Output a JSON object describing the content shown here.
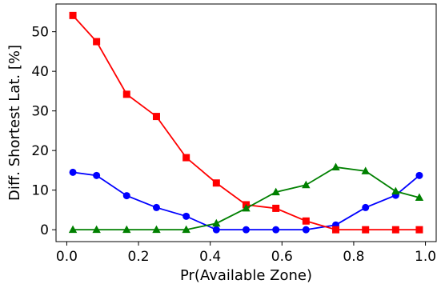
{
  "chart_data": {
    "type": "line",
    "title": "",
    "xlabel": "Pr(Available Zone)",
    "ylabel": "Diff. Shortest Lat. [%]",
    "xlim": [
      -0.03,
      1.03
    ],
    "ylim": [
      -3,
      57
    ],
    "xticks": [
      0.0,
      0.2,
      0.4,
      0.6,
      0.8,
      1.0
    ],
    "xtick_labels": [
      "0.0",
      "0.2",
      "0.4",
      "0.6",
      "0.8",
      "1.0"
    ],
    "yticks": [
      0,
      10,
      20,
      30,
      40,
      50
    ],
    "ytick_labels": [
      "0",
      "10",
      "20",
      "30",
      "40",
      "50"
    ],
    "grid": false,
    "legend": "none",
    "x": [
      0.017,
      0.083,
      0.167,
      0.25,
      0.333,
      0.417,
      0.5,
      0.583,
      0.667,
      0.75,
      0.833,
      0.917,
      0.983
    ],
    "series": [
      {
        "color": "#0000ff",
        "marker": "circle",
        "values": [
          14.5,
          13.7,
          8.6,
          5.6,
          3.4,
          0,
          0,
          0,
          0,
          1.2,
          5.6,
          8.7,
          13.7
        ]
      },
      {
        "color": "#ff0000",
        "marker": "square",
        "values": [
          54.1,
          47.5,
          34.2,
          28.6,
          18.2,
          11.8,
          6.3,
          5.4,
          2.2,
          0,
          0,
          0,
          0
        ]
      },
      {
        "color": "#008000",
        "marker": "triangle",
        "values": [
          0,
          0,
          0,
          0,
          0,
          1.6,
          5.4,
          9.5,
          11.3,
          15.8,
          14.8,
          9.7,
          8.1
        ]
      }
    ]
  }
}
